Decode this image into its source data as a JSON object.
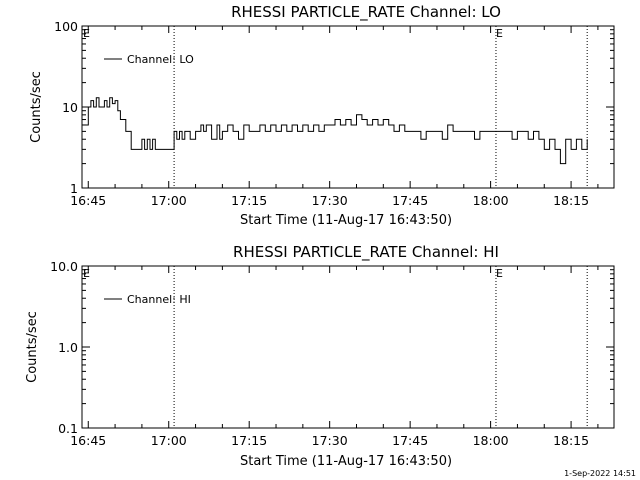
{
  "chart_data": [
    {
      "type": "line",
      "title": "RHESSI PARTICLE_RATE Channel: LO",
      "xlabel": "Start Time (11-Aug-17 16:43:50)",
      "ylabel": "Counts/sec",
      "yscale": "log",
      "ylim": [
        1,
        100
      ],
      "xlim": [
        "16:43:50",
        "18:23:00"
      ],
      "xticks": [
        "16:45",
        "17:00",
        "17:15",
        "17:30",
        "17:45",
        "18:00",
        "18:15"
      ],
      "yticks": [
        "1",
        "10",
        "100"
      ],
      "vlines": [
        "17:01",
        "18:01",
        "18:18"
      ],
      "flags": [
        {
          "label": "E",
          "x": "16:44"
        },
        {
          "label": "E",
          "x": "18:01"
        }
      ],
      "grid": false,
      "legend_position": "top-left",
      "series": [
        {
          "name": "Channel: LO",
          "x": [
            "16:44",
            "16:45",
            "16:45:30",
            "16:46",
            "16:46:30",
            "16:47",
            "16:47:30",
            "16:48",
            "16:48:30",
            "16:49",
            "16:49:30",
            "16:50",
            "16:50:30",
            "16:51",
            "16:52",
            "16:53",
            "16:54",
            "16:55",
            "16:55:30",
            "16:56",
            "16:56:30",
            "16:57",
            "16:57:30",
            "16:58",
            "16:59",
            "17:00",
            "17:01",
            "17:01:30",
            "17:02",
            "17:02:30",
            "17:03",
            "17:03:30",
            "17:04",
            "17:05",
            "17:05:30",
            "17:06",
            "17:06:30",
            "17:07",
            "17:07:30",
            "17:08",
            "17:09",
            "17:09:30",
            "17:10",
            "17:10:30",
            "17:11",
            "17:12",
            "17:13",
            "17:14",
            "17:15",
            "17:16",
            "17:17",
            "17:18",
            "17:19",
            "17:20",
            "17:21",
            "17:22",
            "17:23",
            "17:24",
            "17:25",
            "17:26",
            "17:27",
            "17:28",
            "17:29",
            "17:30",
            "17:31",
            "17:32",
            "17:33",
            "17:34",
            "17:35",
            "17:36",
            "17:37",
            "17:38",
            "17:39",
            "17:40",
            "17:41",
            "17:42",
            "17:43",
            "17:44",
            "17:45",
            "17:46",
            "17:47",
            "17:48",
            "17:49",
            "17:50",
            "17:51",
            "17:52",
            "17:53",
            "17:54",
            "17:55",
            "17:56",
            "17:57",
            "17:58",
            "17:59",
            "18:00",
            "18:01",
            "18:02",
            "18:03",
            "18:04",
            "18:05",
            "18:06",
            "18:07",
            "18:08",
            "18:09",
            "18:10",
            "18:11",
            "18:12",
            "18:13",
            "18:14",
            "18:15",
            "18:16",
            "18:17",
            "18:18"
          ],
          "y": [
            6,
            10,
            12,
            10,
            13,
            10,
            10,
            12,
            10,
            13,
            11,
            12,
            9,
            7,
            5,
            3,
            3,
            4,
            3,
            4,
            3,
            4,
            3,
            3,
            3,
            3,
            5,
            4,
            5,
            4,
            5,
            5,
            4,
            5,
            5,
            6,
            5,
            6,
            6,
            4,
            6,
            4,
            5,
            5,
            6,
            5,
            4,
            6,
            5,
            5,
            6,
            5,
            6,
            5,
            6,
            5,
            6,
            5,
            6,
            5,
            6,
            5,
            6,
            6,
            7,
            6,
            7,
            6,
            8,
            7,
            6,
            7,
            6,
            7,
            6,
            5,
            6,
            5,
            5,
            5,
            4,
            5,
            5,
            5,
            4,
            6,
            5,
            5,
            5,
            5,
            4,
            5,
            5,
            5,
            5,
            5,
            5,
            4,
            5,
            5,
            4,
            5,
            4,
            3,
            4,
            3,
            2,
            4,
            3,
            4,
            3,
            4
          ]
        }
      ]
    },
    {
      "type": "line",
      "title": "RHESSI PARTICLE_RATE Channel: HI",
      "xlabel": "Start Time (11-Aug-17 16:43:50)",
      "ylabel": "Counts/sec",
      "yscale": "log",
      "ylim": [
        0.1,
        10
      ],
      "xlim": [
        "16:43:50",
        "18:23:00"
      ],
      "xticks": [
        "16:45",
        "17:00",
        "17:15",
        "17:30",
        "17:45",
        "18:00",
        "18:15"
      ],
      "yticks": [
        "0.1",
        "1.0",
        "10.0"
      ],
      "vlines": [
        "17:01",
        "18:01",
        "18:18"
      ],
      "flags": [
        {
          "label": "E",
          "x": "16:44"
        },
        {
          "label": "E",
          "x": "18:01"
        }
      ],
      "grid": false,
      "legend_position": "top-left",
      "series": [
        {
          "name": "Channel: HI",
          "x": [],
          "y": []
        }
      ]
    }
  ],
  "footer": {
    "stamp": "1-Sep-2022 14:51"
  }
}
